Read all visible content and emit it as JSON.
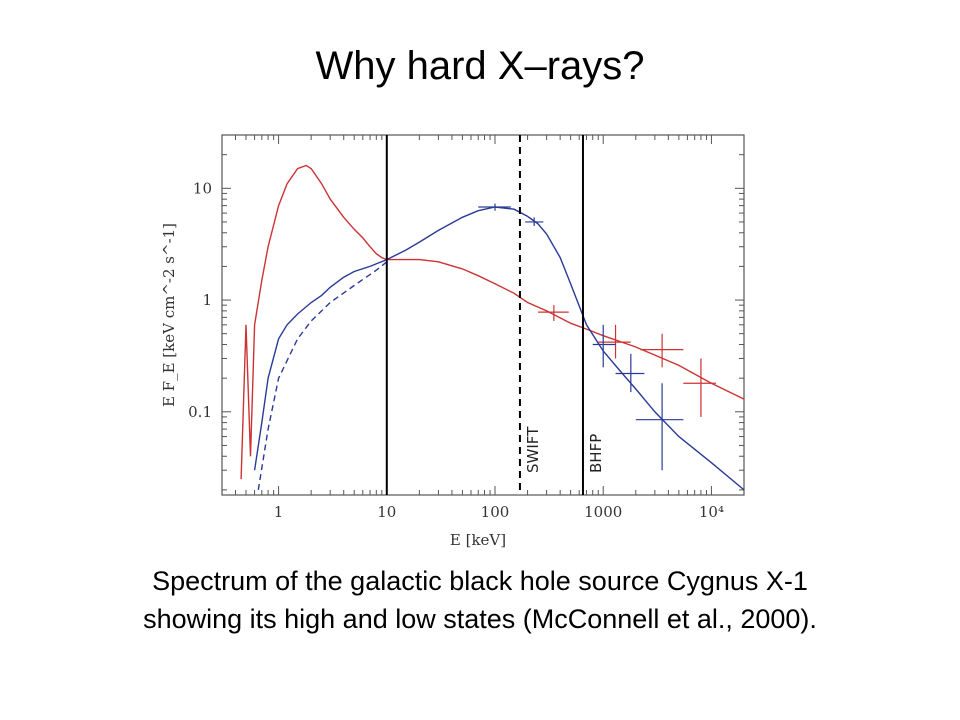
{
  "slide": {
    "title": "Why hard X–rays?",
    "caption_line1": "Spectrum of the galactic black hole source Cygnus X-1",
    "caption_line2": "showing its high and low states (McConnell et al., 2000)."
  },
  "chart_data": {
    "type": "line",
    "xlabel": "E [keV]",
    "ylabel": "E F_E [keV cm^-2 s^-1]",
    "x_scale": "log",
    "y_scale": "log",
    "xlim": [
      0.3,
      20000
    ],
    "ylim": [
      0.018,
      30
    ],
    "x_ticks": [
      {
        "value": 1,
        "label": "1"
      },
      {
        "value": 10,
        "label": "10"
      },
      {
        "value": 100,
        "label": "100"
      },
      {
        "value": 1000,
        "label": "1000"
      },
      {
        "value": 10000,
        "label": "10⁴"
      }
    ],
    "y_ticks": [
      {
        "value": 0.1,
        "label": "0.1"
      },
      {
        "value": 1,
        "label": "1"
      },
      {
        "value": 10,
        "label": "10"
      }
    ],
    "grid": false,
    "colors": {
      "high_state": "#cc3333",
      "low_state": "#2a3a99",
      "band_lines": "#000000"
    },
    "bands": [
      {
        "energy": 10,
        "label": "",
        "style": "solid"
      },
      {
        "energy": 170,
        "label": "SWIFT",
        "style": "dashed"
      },
      {
        "energy": 650,
        "label": "BHFP",
        "style": "solid"
      }
    ],
    "series": [
      {
        "state": "high",
        "color": "#cc3333",
        "x": [
          0.45,
          0.5,
          0.55,
          0.6,
          0.7,
          0.8,
          1.0,
          1.2,
          1.5,
          1.8,
          2.0,
          2.5,
          3.0,
          4.0,
          5.0,
          6.0,
          7.0,
          8.0,
          9.0,
          10,
          15,
          20,
          30,
          50,
          70,
          100,
          150,
          200,
          300,
          500,
          700,
          1000,
          2000,
          5000,
          10000,
          20000
        ],
        "y": [
          0.025,
          0.6,
          0.04,
          0.6,
          1.5,
          3.0,
          7.0,
          11,
          15,
          16,
          15,
          11,
          8.0,
          5.5,
          4.3,
          3.6,
          3.0,
          2.6,
          2.4,
          2.3,
          2.3,
          2.3,
          2.2,
          1.9,
          1.65,
          1.4,
          1.15,
          0.95,
          0.8,
          0.62,
          0.55,
          0.48,
          0.38,
          0.26,
          0.18,
          0.13
        ]
      },
      {
        "state": "low",
        "color": "#2a3a99",
        "x": [
          0.6,
          0.7,
          0.8,
          1.0,
          1.2,
          1.5,
          2.0,
          2.5,
          3.0,
          4.0,
          5.0,
          7.0,
          10,
          15,
          20,
          30,
          50,
          70,
          100,
          150,
          200,
          250,
          300,
          400,
          500,
          700,
          1000,
          1500,
          2000,
          3000,
          5000,
          10000,
          20000
        ],
        "y": [
          0.03,
          0.08,
          0.2,
          0.45,
          0.6,
          0.75,
          0.95,
          1.1,
          1.3,
          1.6,
          1.8,
          2.0,
          2.3,
          2.8,
          3.3,
          4.2,
          5.5,
          6.3,
          6.8,
          6.5,
          5.6,
          4.8,
          3.9,
          2.4,
          1.4,
          0.6,
          0.35,
          0.22,
          0.16,
          0.1,
          0.06,
          0.035,
          0.02
        ]
      },
      {
        "state": "low (model, dashed)",
        "color": "#2a3a99",
        "x": [
          0.65,
          0.8,
          1.0,
          1.5,
          2.0,
          3.0,
          5.0,
          8.0,
          10
        ],
        "y": [
          0.02,
          0.07,
          0.2,
          0.45,
          0.65,
          0.95,
          1.35,
          1.85,
          2.2
        ]
      }
    ],
    "error_points": [
      {
        "state": "high",
        "color": "#cc3333",
        "x": 350,
        "y": 0.78,
        "x_err": [
          250,
          480
        ],
        "y_err": [
          0.65,
          0.9
        ]
      },
      {
        "state": "high",
        "color": "#cc3333",
        "x": 1300,
        "y": 0.42,
        "x_err": [
          900,
          1800
        ],
        "y_err": [
          0.3,
          0.6
        ]
      },
      {
        "state": "high",
        "color": "#cc3333",
        "x": 3500,
        "y": 0.36,
        "x_err": [
          2200,
          5500
        ],
        "y_err": [
          0.25,
          0.5
        ]
      },
      {
        "state": "high",
        "color": "#cc3333",
        "x": 8000,
        "y": 0.18,
        "x_err": [
          5500,
          11000
        ],
        "y_err": [
          0.09,
          0.3
        ]
      },
      {
        "state": "low",
        "color": "#2a3a99",
        "x": 1000,
        "y": 0.4,
        "x_err": [
          800,
          1300
        ],
        "y_err": [
          0.25,
          0.6
        ]
      },
      {
        "state": "low",
        "color": "#2a3a99",
        "x": 1800,
        "y": 0.22,
        "x_err": [
          1300,
          2400
        ],
        "y_err": [
          0.15,
          0.33
        ]
      },
      {
        "state": "low",
        "color": "#2a3a99",
        "x": 3500,
        "y": 0.085,
        "x_err": [
          2000,
          5500
        ],
        "y_err": [
          0.03,
          0.18
        ]
      },
      {
        "state": "low",
        "color": "#2a3a99",
        "x": 100,
        "y": 6.8,
        "x_err": [
          70,
          140
        ],
        "y_err": [
          6.3,
          7.3
        ]
      },
      {
        "state": "low",
        "color": "#2a3a99",
        "x": 230,
        "y": 5.0,
        "x_err": [
          190,
          280
        ],
        "y_err": [
          4.6,
          5.5
        ]
      }
    ]
  }
}
